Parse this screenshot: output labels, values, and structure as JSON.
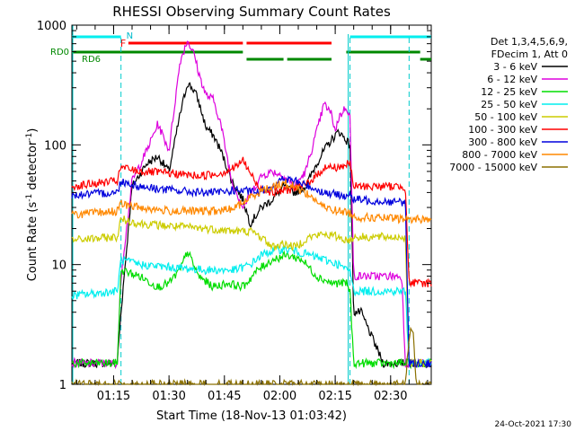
{
  "chart_data": {
    "type": "line",
    "title": "RHESSI Observing Summary Count Rates",
    "xlabel": "Start Time (18-Nov-13 01:03:42)",
    "ylabel": "Count Rate (s",
    "ylabel_sup": "-1",
    "ylabel_mid": " detector",
    "ylabel_end": ")",
    "y_scale": "log",
    "ylim": [
      1,
      1000
    ],
    "xlim": [
      "01:03:42",
      "02:41:00"
    ],
    "y_ticks": [
      {
        "value": 1,
        "label": "1"
      },
      {
        "value": 10,
        "label": "10"
      },
      {
        "value": 100,
        "label": "100"
      },
      {
        "value": 1000,
        "label": "1000"
      }
    ],
    "x_ticks": [
      {
        "value": "01:15",
        "label": "01:15"
      },
      {
        "value": "01:30",
        "label": "01:30"
      },
      {
        "value": "01:45",
        "label": "01:45"
      },
      {
        "value": "02:00",
        "label": "02:00"
      },
      {
        "value": "02:15",
        "label": "02:15"
      },
      {
        "value": "02:30",
        "label": "02:30"
      }
    ],
    "legend_header": [
      "Det 1,3,4,5,6,9,",
      "FDecim 1, Att 0"
    ],
    "legend_placement": "right",
    "series": [
      {
        "name": "3 - 6 keV",
        "color": "#000000",
        "x": [
          "01:03:42",
          "01:10",
          "01:16",
          "01:17",
          "01:20",
          "01:24",
          "01:27",
          "01:30",
          "01:33",
          "01:35",
          "01:37",
          "01:38",
          "01:40",
          "01:42",
          "01:44",
          "01:47",
          "01:50",
          "01:52",
          "01:55",
          "01:58",
          "02:01",
          "02:04",
          "02:07",
          "02:10",
          "02:12",
          "02:14",
          "02:16",
          "02:19",
          "02:20",
          "02:22",
          "02:28"
        ],
        "y": [
          1.5,
          1.5,
          1.5,
          4,
          45,
          70,
          80,
          60,
          180,
          330,
          280,
          230,
          140,
          120,
          90,
          50,
          35,
          22,
          30,
          35,
          45,
          40,
          45,
          70,
          90,
          110,
          130,
          100,
          4,
          4,
          1.5
        ]
      },
      {
        "name": "6 - 12 keV",
        "color": "#dd00dd",
        "x": [
          "01:03:42",
          "01:16",
          "01:17",
          "01:20",
          "01:24",
          "01:27",
          "01:30",
          "01:33",
          "01:35",
          "01:37",
          "01:38",
          "01:40",
          "01:42",
          "01:44",
          "01:47",
          "01:50",
          "01:55",
          "01:58",
          "02:01",
          "02:04",
          "02:07",
          "02:10",
          "02:12",
          "02:14",
          "02:15",
          "02:16",
          "02:18",
          "02:19",
          "02:20",
          "02:22",
          "02:33",
          "02:34",
          "02:41:00"
        ],
        "y": [
          1.5,
          1.5,
          8,
          50,
          90,
          150,
          90,
          500,
          750,
          550,
          400,
          260,
          240,
          150,
          50,
          30,
          55,
          60,
          55,
          45,
          60,
          130,
          220,
          180,
          130,
          170,
          210,
          170,
          8,
          8,
          8,
          1.5,
          1.5
        ]
      },
      {
        "name": "12 - 25 keV",
        "color": "#00dd00",
        "x": [
          "01:03:42",
          "01:16",
          "01:17",
          "01:22",
          "01:27",
          "01:30",
          "01:33",
          "01:35",
          "01:38",
          "01:42",
          "01:46",
          "01:50",
          "01:54",
          "01:58",
          "02:02",
          "02:06",
          "02:10",
          "02:14",
          "02:18",
          "02:19",
          "02:20",
          "02:41:00"
        ],
        "y": [
          1.5,
          1.5,
          9,
          8,
          6.5,
          7,
          9,
          13,
          8,
          6.5,
          7,
          6.5,
          9,
          11,
          12,
          11,
          8,
          7,
          7,
          6,
          1.5,
          1.5
        ]
      },
      {
        "name": "25 - 50 keV",
        "color": "#00eeee",
        "x": [
          "01:03:42",
          "01:16",
          "01:17",
          "01:22",
          "01:30",
          "01:40",
          "01:48",
          "01:52",
          "01:55",
          "01:58",
          "02:01",
          "02:04",
          "02:08",
          "02:12",
          "02:16",
          "02:18",
          "02:19",
          "02:20",
          "02:34",
          "02:35",
          "02:41:00"
        ],
        "y": [
          5.5,
          6,
          11,
          10,
          9.5,
          9,
          9,
          10,
          12,
          13,
          13.5,
          13,
          12,
          11,
          10,
          9,
          9,
          6,
          6,
          1.5,
          1.5
        ]
      },
      {
        "name": "50 - 100 keV",
        "color": "#cccc00",
        "x": [
          "01:03:42",
          "01:16",
          "01:17",
          "01:22",
          "01:30",
          "01:40",
          "01:48",
          "01:52",
          "01:55",
          "01:58",
          "02:01",
          "02:04",
          "02:08",
          "02:12",
          "02:16",
          "02:18",
          "02:19",
          "02:20",
          "02:34",
          "02:35",
          "02:41:00"
        ],
        "y": [
          16,
          17,
          24,
          22,
          21,
          20,
          19,
          19,
          17,
          14,
          15,
          14,
          17,
          18,
          17,
          16,
          16,
          17,
          17,
          1.5,
          1.5
        ]
      },
      {
        "name": "100 - 300 keV",
        "color": "#ff0000",
        "x": [
          "01:03:42",
          "01:16",
          "01:17",
          "01:22",
          "01:30",
          "01:38",
          "01:44",
          "01:48",
          "01:50",
          "01:54",
          "01:58",
          "02:02",
          "02:06",
          "02:10",
          "02:12",
          "02:16",
          "02:19",
          "02:20",
          "02:34",
          "02:35",
          "02:41:00"
        ],
        "y": [
          45,
          50,
          65,
          60,
          58,
          55,
          58,
          65,
          75,
          45,
          40,
          42,
          45,
          55,
          65,
          65,
          70,
          45,
          45,
          7,
          7
        ]
      },
      {
        "name": "300 - 800 keV",
        "color": "#0000dd",
        "x": [
          "01:03:42",
          "01:16",
          "01:17",
          "01:22",
          "01:30",
          "01:38",
          "01:44",
          "01:48",
          "01:54",
          "01:58",
          "02:01",
          "02:04",
          "02:08",
          "02:12",
          "02:16",
          "02:19",
          "02:20",
          "02:34",
          "02:35",
          "02:41:00"
        ],
        "y": [
          38,
          40,
          50,
          45,
          42,
          40,
          40,
          42,
          40,
          45,
          52,
          50,
          45,
          40,
          38,
          38,
          35,
          33,
          1.5,
          1.5
        ]
      },
      {
        "name": "800 - 7000 keV",
        "color": "#ff8800",
        "x": [
          "01:03:42",
          "01:16",
          "01:17",
          "01:22",
          "01:30",
          "01:38",
          "01:44",
          "01:48",
          "01:54",
          "01:58",
          "02:01",
          "02:04",
          "02:08",
          "02:12",
          "02:16",
          "02:19",
          "02:20",
          "02:34",
          "02:35",
          "02:41:00"
        ],
        "y": [
          26,
          28,
          32,
          30,
          28,
          28,
          28,
          30,
          40,
          45,
          48,
          45,
          38,
          30,
          28,
          27,
          25,
          24,
          24,
          24
        ]
      },
      {
        "name": "7000 - 15000 keV",
        "color": "#8b7000",
        "x": [
          "01:03:42",
          "01:10",
          "01:16",
          "01:55",
          "02:00",
          "02:05",
          "02:34",
          "02:35",
          "02:36",
          "02:37",
          "02:41:00"
        ],
        "y": [
          1,
          1,
          1,
          1,
          1,
          1,
          1,
          2.5,
          3,
          1,
          1
        ]
      }
    ],
    "annotations": {
      "top_label": "N",
      "flare_label": "F",
      "rd0_label": "RD0",
      "rd6_label": "RD6",
      "night_intervals": [
        [
          "01:03:42",
          "01:17"
        ],
        [
          "02:19",
          "02:41:00"
        ]
      ],
      "flare_intervals": [
        [
          "01:19",
          "01:50"
        ],
        [
          "01:51",
          "02:14"
        ]
      ],
      "rd0_intervals": [
        [
          "01:03:42",
          "01:50"
        ],
        [
          "02:18",
          "02:38"
        ]
      ],
      "rd6_intervals": [
        [
          "01:51",
          "02:01"
        ],
        [
          "02:02",
          "02:14"
        ],
        [
          "02:38",
          "02:41:00"
        ]
      ],
      "saa_lines": [
        "01:17",
        "02:19",
        "02:35"
      ]
    },
    "footer_timestamp": "24-Oct-2021 17:30",
    "grid": false
  }
}
